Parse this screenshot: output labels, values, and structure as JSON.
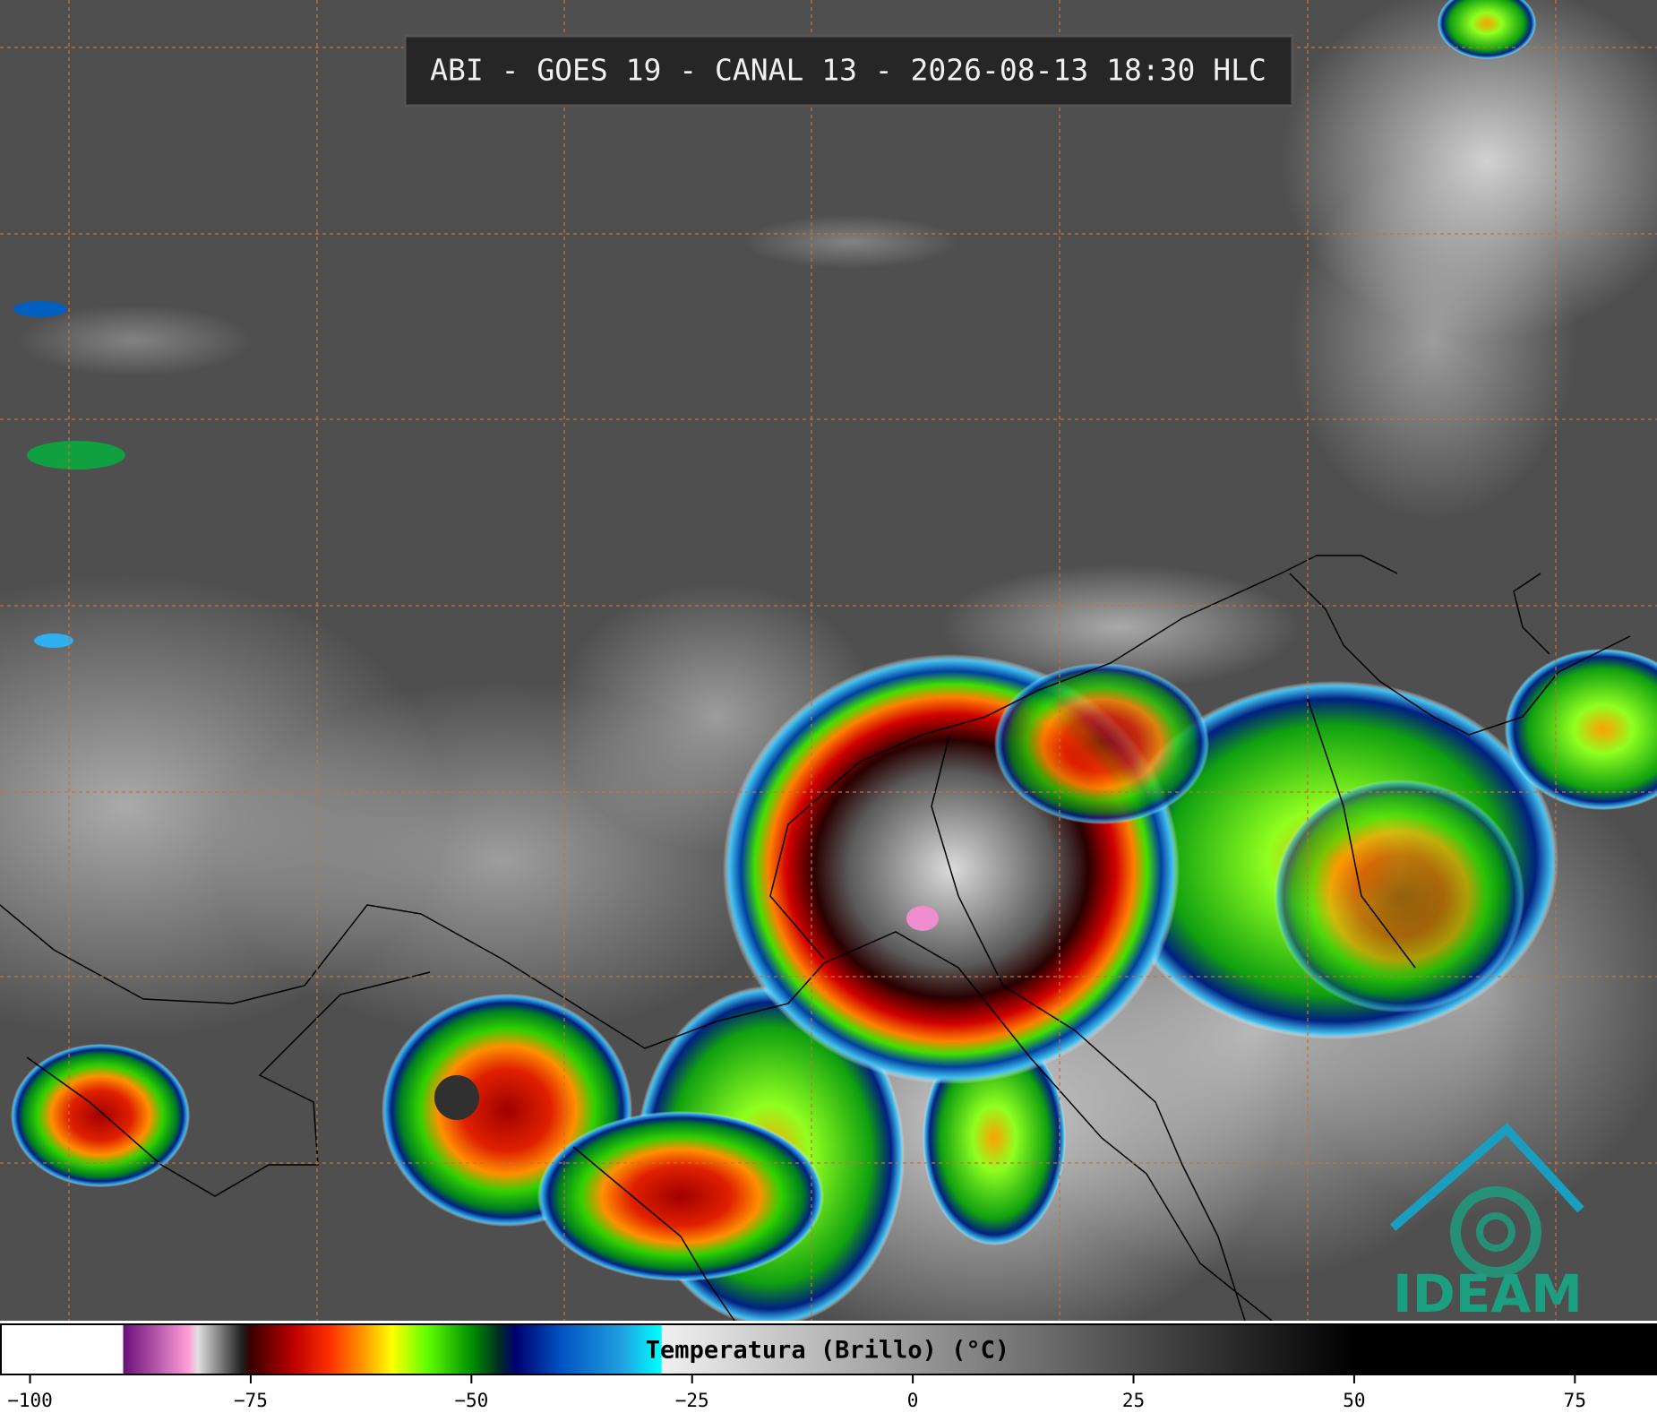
{
  "header": {
    "title": "ABI - GOES 19 - CANAL 13 - 2026-08-13 18:30 HLC"
  },
  "logo": {
    "text": "IDEAM"
  },
  "colorbar": {
    "label": "Temperatura (Brillo) (°C)",
    "range": [
      -103.3,
      84.2
    ],
    "ticks": [
      {
        "value": -100,
        "label": "−100"
      },
      {
        "value": -75,
        "label": "−75"
      },
      {
        "value": -50,
        "label": "−50"
      },
      {
        "value": -25,
        "label": "−25"
      },
      0,
      25,
      50,
      75
    ],
    "colormap": [
      {
        "value": -103.3,
        "color": "#ffffff"
      },
      {
        "value": -89.5,
        "color": "#ffffff"
      },
      {
        "value": -89.4,
        "color": "#6a0f7a"
      },
      {
        "value": -82,
        "color": "#ff9fd8"
      },
      {
        "value": -81,
        "color": "#e0e0e0"
      },
      {
        "value": -76,
        "color": "#202020"
      },
      {
        "value": -75,
        "color": "#3a0000"
      },
      {
        "value": -70,
        "color": "#c00000"
      },
      {
        "value": -66,
        "color": "#ff3000"
      },
      {
        "value": -62,
        "color": "#ffa000"
      },
      {
        "value": -59,
        "color": "#ffff00"
      },
      {
        "value": -55,
        "color": "#60ff00"
      },
      {
        "value": -50,
        "color": "#009000"
      },
      {
        "value": -47,
        "color": "#003020"
      },
      {
        "value": -45,
        "color": "#000070"
      },
      {
        "value": -40,
        "color": "#0050c0"
      },
      {
        "value": -33,
        "color": "#20a0e0"
      },
      {
        "value": -28.5,
        "color": "#00ffff"
      },
      {
        "value": -28.4,
        "color": "#f0f0f0"
      },
      {
        "value": 50,
        "color": "#000000"
      },
      {
        "value": 84.2,
        "color": "#000000"
      }
    ]
  }
}
